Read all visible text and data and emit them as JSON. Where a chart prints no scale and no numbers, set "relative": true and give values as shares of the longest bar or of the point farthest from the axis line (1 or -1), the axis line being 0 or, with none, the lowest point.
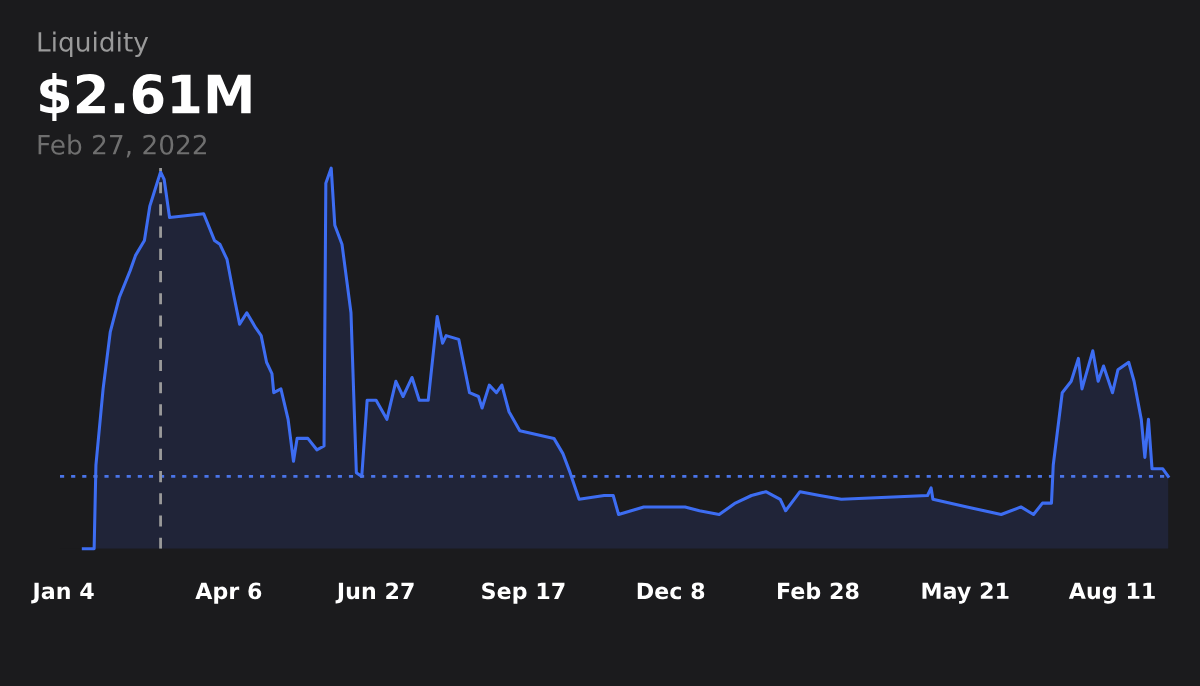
{
  "chart_data": {
    "type": "area",
    "title": "Liquidity",
    "subtitle": "$2.61M",
    "annotations": [
      "Feb 27, 2022"
    ],
    "relative": true,
    "color": "#3d6df2",
    "grid": false,
    "legend": false,
    "x": [
      "2022-01-15",
      "2022-01-21",
      "2022-01-22",
      "2022-01-26",
      "2022-01-30",
      "2022-02-04",
      "2022-02-10",
      "2022-02-13",
      "2022-02-18",
      "2022-02-21",
      "2022-02-23",
      "2022-02-27",
      "2022-03-01",
      "2022-03-04",
      "2022-03-23",
      "2022-03-29",
      "2022-04-01",
      "2022-04-05",
      "2022-04-09",
      "2022-04-12",
      "2022-04-16",
      "2022-04-21",
      "2022-04-24",
      "2022-04-27",
      "2022-04-30",
      "2022-05-01",
      "2022-05-05",
      "2022-05-09",
      "2022-05-12",
      "2022-05-14",
      "2022-05-20",
      "2022-05-25",
      "2022-05-29",
      "2022-05-30",
      "2022-06-02",
      "2022-06-04",
      "2022-06-08",
      "2022-06-13",
      "2022-06-16",
      "2022-06-19",
      "2022-06-22",
      "2022-06-27",
      "2022-07-03",
      "2022-07-08",
      "2022-07-12",
      "2022-07-17",
      "2022-07-21",
      "2022-07-26",
      "2022-07-31",
      "2022-08-03",
      "2022-08-05",
      "2022-08-12",
      "2022-08-18",
      "2022-08-23",
      "2022-08-25",
      "2022-08-29",
      "2022-09-02",
      "2022-09-05",
      "2022-09-09",
      "2022-09-15",
      "2022-10-04",
      "2022-10-09",
      "2022-10-13",
      "2022-10-18",
      "2022-11-01",
      "2022-11-06",
      "2022-11-09",
      "2022-11-23",
      "2022-12-16",
      "2022-12-24",
      "2023-01-04",
      "2023-01-13",
      "2023-01-22",
      "2023-01-30",
      "2023-02-07",
      "2023-02-10",
      "2023-02-18",
      "2023-03-01",
      "2023-03-13",
      "2023-04-30",
      "2023-05-02",
      "2023-05-03",
      "2023-05-22",
      "2023-06-10",
      "2023-06-21",
      "2023-06-28",
      "2023-07-03",
      "2023-07-08",
      "2023-07-09",
      "2023-07-14",
      "2023-07-19",
      "2023-07-23",
      "2023-07-25",
      "2023-07-31",
      "2023-08-03",
      "2023-08-06",
      "2023-08-11",
      "2023-08-14",
      "2023-08-20",
      "2023-08-23",
      "2023-08-27",
      "2023-08-29",
      "2023-08-31",
      "2023-09-02",
      "2023-09-08",
      "2023-09-11"
    ],
    "values": [
      0,
      0,
      0.22,
      0.42,
      0.57,
      0.66,
      0.73,
      0.77,
      0.81,
      0.9,
      0.93,
      0.99,
      0.97,
      0.87,
      0.88,
      0.81,
      0.8,
      0.76,
      0.66,
      0.59,
      0.62,
      0.58,
      0.56,
      0.49,
      0.46,
      0.41,
      0.42,
      0.34,
      0.23,
      0.29,
      0.29,
      0.26,
      0.27,
      0.96,
      1.0,
      0.85,
      0.8,
      0.62,
      0.2,
      0.19,
      0.39,
      0.39,
      0.34,
      0.44,
      0.4,
      0.45,
      0.39,
      0.39,
      0.61,
      0.54,
      0.56,
      0.55,
      0.41,
      0.4,
      0.37,
      0.43,
      0.41,
      0.43,
      0.36,
      0.31,
      0.29,
      0.25,
      0.2,
      0.13,
      0.14,
      0.14,
      0.09,
      0.11,
      0.11,
      0.1,
      0.09,
      0.12,
      0.14,
      0.15,
      0.13,
      0.1,
      0.15,
      0.14,
      0.13,
      0.14,
      0.16,
      0.13,
      0.11,
      0.09,
      0.11,
      0.09,
      0.12,
      0.12,
      0.22,
      0.41,
      0.44,
      0.5,
      0.42,
      0.52,
      0.44,
      0.48,
      0.41,
      0.47,
      0.49,
      0.44,
      0.34,
      0.24,
      0.34,
      0.21,
      0.21,
      0.19
    ],
    "xlim": [
      "2022-01-02",
      "2023-09-12"
    ],
    "xticks": [
      {
        "value": "2022-01-04",
        "label": "Jan 4"
      },
      {
        "value": "2022-04-06",
        "label": "Apr 6"
      },
      {
        "value": "2022-06-27",
        "label": "Jun 27"
      },
      {
        "value": "2022-09-17",
        "label": "Sep 17"
      },
      {
        "value": "2022-12-08",
        "label": "Dec 8"
      },
      {
        "value": "2023-02-28",
        "label": "Feb 28"
      },
      {
        "value": "2023-05-21",
        "label": "May 21"
      },
      {
        "value": "2023-08-11",
        "label": "Aug 11"
      }
    ],
    "ref_lines": [
      {
        "axis": "y",
        "value": 0.19,
        "color": "#4a74e8",
        "line_style": "dotted"
      },
      {
        "axis": "x",
        "value": "2022-02-27",
        "color": "#9a9a9a",
        "line_style": "dashed"
      }
    ]
  }
}
